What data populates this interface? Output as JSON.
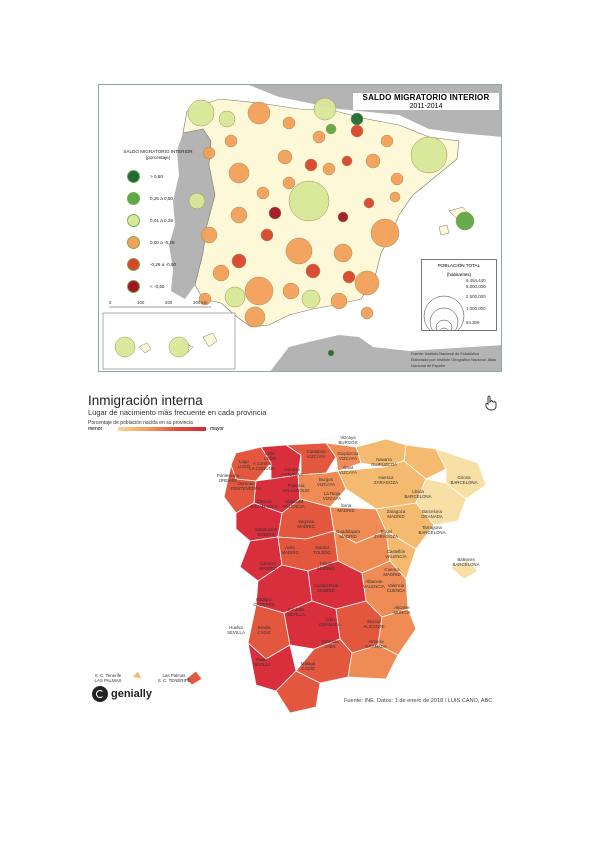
{
  "map1": {
    "title": "SALDO MIGRATORIO INTERIOR",
    "years": "2011-2014",
    "legend_title": "SALDO MIGRATORIO INTERIOR",
    "legend_unit": "(porcentaje)",
    "legend_items": [
      {
        "label": "> 0,50",
        "color": "#1e6b34"
      },
      {
        "label": "0,26 a 0,50",
        "color": "#5ea845"
      },
      {
        "label": "0,01 a 0,25",
        "color": "#d8e898"
      },
      {
        "label": "0,00 a -0,25",
        "color": "#f2a05a"
      },
      {
        "label": "-0,26 a -0,50",
        "color": "#d9472b"
      },
      {
        "label": "< -0,50",
        "color": "#a11622"
      }
    ],
    "pop_title": "POBLACIÓN TOTAL",
    "pop_unit": "(habitantes)",
    "pop_values": [
      "6.454.440",
      "5.000.000",
      "2.500.000",
      "1.000.000",
      "84.309"
    ],
    "scale": [
      "0",
      "100",
      "200",
      "300 km"
    ],
    "source": "Fuente: Instituto Nacional de Estadística",
    "credit": "Elaborado por: Instituto Geográfico Nacional. Atlas Nacional de España",
    "colors": {
      "land": "#fdf8d8",
      "portugal": "#b4b4b4",
      "sea": "#ffffff"
    }
  },
  "map2": {
    "title": "Inmigración interna",
    "subtitle": "Lugar de nacimiento más frecuente en cada provincia",
    "legend": "Porcentaje de población nacida en su provincia",
    "menor": "menor",
    "mayor": "mayor",
    "brand": "genially",
    "source": "Fuente: INE. Datos: 1 de enero de 2018 / LUIS CANO, ABC",
    "labels": [
      {
        "p": "Vizcaya",
        "b": "BURGOS"
      },
      {
        "p": "León",
        "b": "LEÓN"
      },
      {
        "p": "Cantabria",
        "b": "VIZCAYA"
      },
      {
        "p": "Guipúzcoa",
        "b": "VIZCAYA"
      },
      {
        "p": "Lugo",
        "b": "LUGO"
      },
      {
        "p": "A Coruña",
        "b": "LA CORUÑA"
      },
      {
        "p": "Asturias",
        "b": "ASTURIAS"
      },
      {
        "p": "Álava",
        "b": "VIZCAYA"
      },
      {
        "p": "Navarra",
        "b": "GUIPÚZCOA"
      },
      {
        "p": "Pontevedra",
        "b": "ORENSE"
      },
      {
        "p": "Ourense",
        "b": "PONTEVEDRA"
      },
      {
        "p": "Palencia",
        "b": "VALLADOLID"
      },
      {
        "p": "Burgos",
        "b": "VIZCAYA"
      },
      {
        "p": "Huesca",
        "b": "ZARAGOZA"
      },
      {
        "p": "Girona",
        "b": "BARCELONA"
      },
      {
        "p": "La Rioja",
        "b": "VIZCAYA"
      },
      {
        "p": "Lleida",
        "b": "BARCELONA"
      },
      {
        "p": "Zamora",
        "b": "SALAMANCA"
      },
      {
        "p": "Valladolid",
        "b": "PALENCIA"
      },
      {
        "p": "Soria",
        "b": "MADRID"
      },
      {
        "p": "Zaragoza",
        "b": "MADRID"
      },
      {
        "p": "Barcelona",
        "b": "GRANADA"
      },
      {
        "p": "Salamanca",
        "b": "MADRID"
      },
      {
        "p": "Segovia",
        "b": "MADRID"
      },
      {
        "p": "Guadalajara",
        "b": "MADRID"
      },
      {
        "p": "Teruel",
        "b": "ZARAGOZA"
      },
      {
        "p": "Tarragona",
        "b": "BARCELONA"
      },
      {
        "p": "Ávila",
        "b": "MADRID"
      },
      {
        "p": "Madrid",
        "b": "TOLEDO"
      },
      {
        "p": "Castellón",
        "b": "VALENCIA"
      },
      {
        "p": "Cáceres",
        "b": "MADRID"
      },
      {
        "p": "Toledo",
        "b": "MADRID"
      },
      {
        "p": "Cuenca",
        "b": "MADRID"
      },
      {
        "p": "Valencia",
        "b": "CUENCA"
      },
      {
        "p": "Baleares",
        "b": "BARCELONA"
      },
      {
        "p": "Badajoz",
        "b": "CÁCERES"
      },
      {
        "p": "Ciudad Real",
        "b": "MADRID"
      },
      {
        "p": "Albacete",
        "b": "VALENCIA"
      },
      {
        "p": "Alicante",
        "b": "MURCIA"
      },
      {
        "p": "Córdoba",
        "b": "SEVILLA"
      },
      {
        "p": "Jaén",
        "b": "GRANADA"
      },
      {
        "p": "Murcia",
        "b": "ALICANTE"
      },
      {
        "p": "Huelva",
        "b": "SEVILLA"
      },
      {
        "p": "Sevilla",
        "b": "CÁDIZ"
      },
      {
        "p": "Granada",
        "b": "JAÉN"
      },
      {
        "p": "Almería",
        "b": "GRANADA"
      },
      {
        "p": "Málaga",
        "b": "CÁDIZ"
      },
      {
        "p": "Cádiz",
        "b": "SEVILLA"
      },
      {
        "p": "S. C. Tenerife",
        "b": "LAS PALMAS"
      },
      {
        "p": "Las Palmas",
        "b": "S. C. TENERIFE"
      }
    ],
    "colors": {
      "c1": "#f8dfa6",
      "c2": "#f4bb70",
      "c3": "#ef8c55",
      "c4": "#e4573f",
      "c5": "#d92e3c"
    }
  }
}
